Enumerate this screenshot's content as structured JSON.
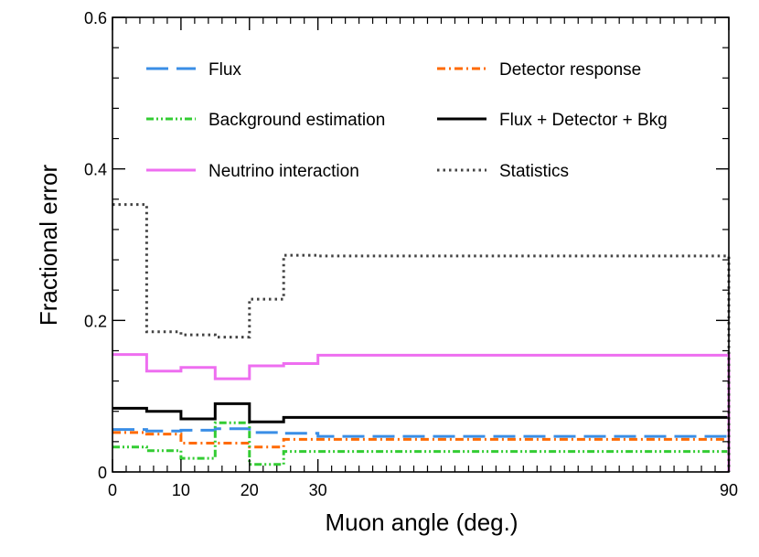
{
  "chart_data": {
    "type": "line",
    "title": "",
    "xlabel": "Muon angle (deg.)",
    "ylabel": "Fractional error",
    "xlim": [
      0,
      90
    ],
    "ylim": [
      0,
      0.6
    ],
    "grid": false,
    "legend_position": "top",
    "x_ticks": [
      0,
      10,
      20,
      30,
      90
    ],
    "x_tick_labels": [
      "0",
      "10",
      "20",
      "30",
      "90"
    ],
    "y_ticks": [
      0,
      0.2,
      0.4,
      0.6
    ],
    "y_tick_labels": [
      "0",
      "0.2",
      "0.4",
      "0.6"
    ],
    "bin_edges": [
      0,
      5,
      10,
      15,
      20,
      25,
      30,
      90
    ],
    "series": [
      {
        "name": "Flux",
        "key": "flux",
        "color": "#3a8ee6",
        "dash": "dash",
        "values": [
          0.056,
          0.054,
          0.055,
          0.057,
          0.052,
          0.051,
          0.047
        ]
      },
      {
        "name": "Detector response",
        "key": "detector",
        "color": "#ff6a00",
        "dash": "dashdot",
        "values": [
          0.052,
          0.05,
          0.038,
          0.038,
          0.033,
          0.043,
          0.043
        ]
      },
      {
        "name": "Background estimation",
        "key": "background",
        "color": "#33cc33",
        "dash": "dashdotdot",
        "values": [
          0.033,
          0.028,
          0.018,
          0.065,
          0.01,
          0.027,
          0.027
        ]
      },
      {
        "name": "Flux + Detector + Bkg",
        "key": "total",
        "color": "#000000",
        "dash": "solid",
        "values": [
          0.084,
          0.08,
          0.07,
          0.09,
          0.066,
          0.072,
          0.072
        ]
      },
      {
        "name": "Neutrino interaction",
        "key": "neutrino",
        "color": "#ee6ef0",
        "dash": "solid",
        "values": [
          0.155,
          0.133,
          0.138,
          0.123,
          0.14,
          0.143,
          0.154
        ]
      },
      {
        "name": "Statistics",
        "key": "statistics",
        "color": "#444444",
        "dash": "dot",
        "values": [
          0.353,
          0.185,
          0.181,
          0.178,
          0.228,
          0.286,
          0.285
        ]
      }
    ]
  }
}
